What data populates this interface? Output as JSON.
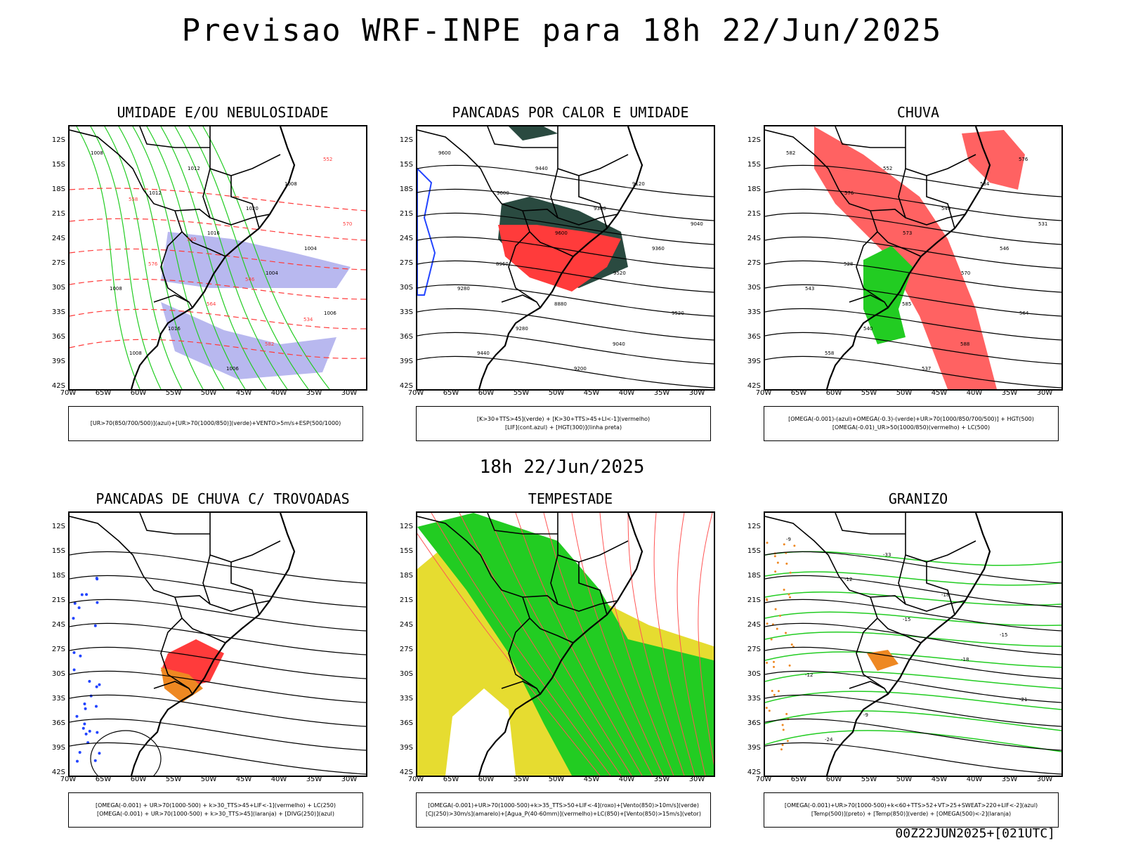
{
  "title": "Previsao WRF-INPE  para 18h 22/Jun/2025",
  "mid_time": "18h 22/Jun/2025",
  "footer": "00Z22JUN2025+[021UTC]",
  "lat_ticks": [
    "12S",
    "15S",
    "18S",
    "21S",
    "24S",
    "27S",
    "30S",
    "33S",
    "36S",
    "39S",
    "42S"
  ],
  "lon_ticks": [
    "70W",
    "65W",
    "60W",
    "55W",
    "50W",
    "45W",
    "40W",
    "35W",
    "30W"
  ],
  "colors": {
    "red": "#ff3b3b",
    "green": "#22cc22",
    "blue": "#2244ff",
    "lavender": "#9a9ae8",
    "yellow": "#e6dc30",
    "teal": "#2a4a40",
    "orange": "#ee8822"
  },
  "panels": [
    {
      "title": "UMIDADE E/OU NEBULOSIDADE",
      "legend": [
        "[UR>70(850/700/500)](azul)+[UR>70(1000/850)](verde)+VENTO>5m/s+ESP(500/1000)"
      ],
      "labels": [
        "1008",
        "1012",
        "1016",
        "1004",
        "1006",
        "1008",
        "1012",
        "1020",
        "1004",
        "1008",
        "1016",
        "1006",
        "1008",
        "570",
        "576",
        "564",
        "582",
        "552",
        "558",
        "540",
        "546",
        "534"
      ]
    },
    {
      "title": "PANCADAS POR CALOR E UMIDADE",
      "legend": [
        "[K>30+TTS>45](verde) + [K>30+TTS>45+LI<-1](vermelho)",
        "[LIF](cont.azul) + [HGT(300)](linha preta)"
      ],
      "labels": [
        "9600",
        "9600",
        "9600",
        "9520",
        "9520",
        "9440",
        "9440",
        "9360",
        "9360",
        "9280",
        "9280",
        "9200",
        "9120",
        "9040",
        "8960",
        "8880",
        "9040"
      ]
    },
    {
      "title": "CHUVA",
      "legend": [
        "[OMEGA(-0.001)-(azul)+OMEGA(-0.3)-(verde)+UR>70(1000/850/700/500)] + HGT(500)",
        "[OMEGA(-0.01)_UR>50(1000/850)(vermelho) + LC(500)"
      ],
      "labels": [
        "582",
        "576",
        "573",
        "570",
        "564",
        "558",
        "552",
        "549",
        "546",
        "543",
        "540",
        "537",
        "534",
        "531",
        "528",
        "585",
        "588",
        "576"
      ]
    },
    {
      "title": "PANCADAS DE CHUVA C/ TROVOADAS",
      "legend": [
        "[OMEGA(-0.001) + UR>70(1000-500) + k>30_TTS>45+LIF<-1](vermelho) + LC(250)",
        "[OMEGA(-0.001) + UR>70(1000-500) + k>30_TTS>45](laranja) + [DIVG(250)](azul)"
      ],
      "labels": []
    },
    {
      "title": "TEMPESTADE",
      "legend": [
        "[OMEGA(-0.001)+UR>70(1000-500)+k>35_TTS>50+LIF<-4](roxo)+[Vento(850)>10m/s](verde)",
        "[CJ(250)>30m/s](amarelo)+[Agua_P(40-60mm)](vermelho)+LC(850)+[Vento(850)>15m/s](vetor)"
      ],
      "labels": []
    },
    {
      "title": "GRANIZO",
      "legend": [
        "[OMEGA(-0.001)+UR>70(1000-500)+k<60+TTS>52+VT>25+SWEAT>220+LIF<-2](azul)",
        "[Temp(500)](preto) + [Temp(850)](verde) + [OMEGA(500)<-2](laranja)"
      ],
      "labels": [
        "-9",
        "-12",
        "-15",
        "-18",
        "-21",
        "-24",
        "-33",
        "-18",
        "-15",
        "-12",
        "-9"
      ]
    }
  ]
}
